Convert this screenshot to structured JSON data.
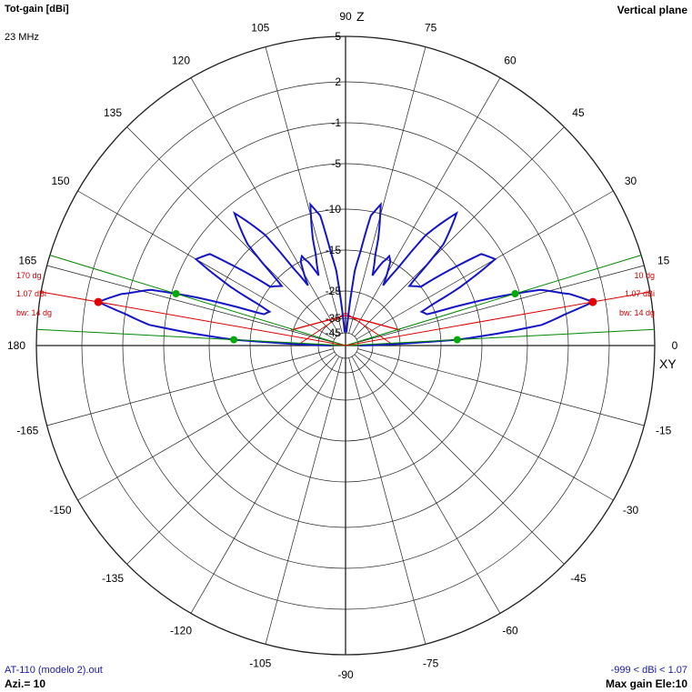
{
  "header": {
    "title": "Tot-gain [dBi]",
    "frequency": "23 MHz",
    "plane": "Vertical plane",
    "z_axis": "Z",
    "xy_axis": "XY"
  },
  "footer": {
    "file": "AT-110 (modelo 2).out",
    "azimuth": "Azi.= 10",
    "range": "-999 < dBi < 1.07",
    "max_gain": "Max gain Ele:10"
  },
  "colors": {
    "pattern": "#1515c8",
    "grid": "#202020",
    "max_marker": "#e00000",
    "beamwidth": "#008800",
    "annotation": "#cc0000"
  },
  "chart_data": {
    "type": "polar",
    "angle_unit": "degrees",
    "angle_ticks": [
      0,
      15,
      30,
      45,
      60,
      75,
      90,
      105,
      120,
      135,
      150,
      165,
      180,
      -165,
      -150,
      -135,
      -120,
      -105,
      -90,
      -75,
      -60,
      -45,
      -30,
      -15
    ],
    "radial_ticks": [
      5,
      2,
      -1,
      -5,
      -10,
      -15,
      -25,
      -35,
      -45
    ],
    "series": [
      {
        "points_elevation_gain": [
          [
            0,
            -44
          ],
          [
            3,
            -13
          ],
          [
            6,
            -3.5
          ],
          [
            10,
            1.07
          ],
          [
            13,
            -0.5
          ],
          [
            16,
            -3
          ],
          [
            18,
            -8
          ],
          [
            21,
            -17
          ],
          [
            24,
            -18
          ],
          [
            27,
            -11
          ],
          [
            30,
            -6
          ],
          [
            34,
            -7
          ],
          [
            38,
            -15
          ],
          [
            43,
            -17
          ],
          [
            46,
            -9.5
          ],
          [
            50,
            -6
          ],
          [
            54,
            -10
          ],
          [
            58,
            -21
          ],
          [
            62,
            -15
          ],
          [
            64,
            -14.5
          ],
          [
            66,
            -16
          ],
          [
            69,
            -20
          ],
          [
            73,
            -13
          ],
          [
            76,
            -9
          ],
          [
            79,
            -10.5
          ],
          [
            83,
            -20
          ],
          [
            86,
            -44
          ],
          [
            90,
            -44
          ]
        ]
      }
    ],
    "max_gain": {
      "value_dbi": 1.07,
      "elevations": [
        10,
        170
      ]
    },
    "beamwidth_deg": 14,
    "beam_edges": [
      3,
      17,
      163,
      177
    ],
    "annotations": {
      "right": [
        "10 dg",
        "1.07 dBi",
        "bw: 14 dg"
      ],
      "left": [
        "170 dg",
        "1.07 dBi",
        "bw: 14 dg"
      ]
    },
    "structure": {
      "polyline": [
        [
          -60,
          -17
        ],
        [
          0,
          -33
        ],
        [
          60,
          -17
        ]
      ]
    }
  }
}
